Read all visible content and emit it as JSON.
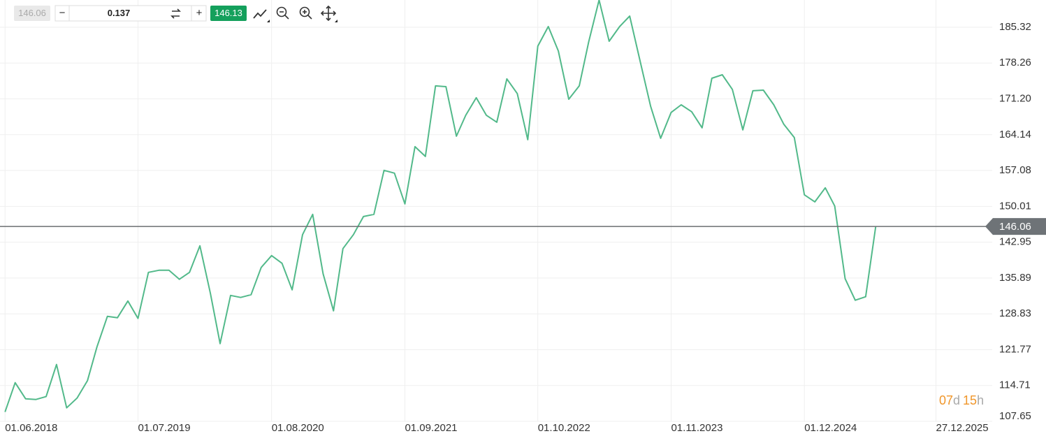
{
  "toolbar": {
    "bid": "146.06",
    "step": "0.137",
    "ask": "146.13"
  },
  "countdown": [
    "07",
    "d",
    "15",
    "h"
  ],
  "chart_data": {
    "type": "line",
    "color": "#52b98a",
    "x": [
      "2018-06-01",
      "2018-07-01",
      "2018-08-01",
      "2018-09-01",
      "2018-10-01",
      "2018-11-01",
      "2018-12-01",
      "2019-01-01",
      "2019-02-01",
      "2019-03-01",
      "2019-04-01",
      "2019-05-01",
      "2019-06-01",
      "2019-07-01",
      "2019-08-01",
      "2019-09-01",
      "2019-10-01",
      "2019-11-01",
      "2019-12-01",
      "2020-01-01",
      "2020-02-01",
      "2020-03-01",
      "2020-04-01",
      "2020-05-01",
      "2020-06-01",
      "2020-07-01",
      "2020-08-01",
      "2020-09-01",
      "2020-10-01",
      "2020-11-01",
      "2020-12-01",
      "2021-01-01",
      "2021-02-01",
      "2021-03-01",
      "2021-04-01",
      "2021-05-01",
      "2021-06-01",
      "2021-07-01",
      "2021-08-01",
      "2021-09-01",
      "2021-10-01",
      "2021-11-01",
      "2021-12-01",
      "2022-01-01",
      "2022-02-01",
      "2022-03-01",
      "2022-04-01",
      "2022-05-01",
      "2022-06-01",
      "2022-07-01",
      "2022-08-01",
      "2022-09-01",
      "2022-10-01",
      "2022-11-01",
      "2022-12-01",
      "2023-01-01",
      "2023-02-01",
      "2023-03-01",
      "2023-04-01",
      "2023-05-01",
      "2023-06-01",
      "2023-07-01",
      "2023-08-01",
      "2023-09-01",
      "2023-10-01",
      "2023-11-01",
      "2023-12-01",
      "2024-01-01",
      "2024-02-01",
      "2024-03-01",
      "2024-04-01",
      "2024-05-01",
      "2024-06-01",
      "2024-07-01",
      "2024-08-01",
      "2024-09-01",
      "2024-10-01",
      "2024-11-01",
      "2024-12-01",
      "2025-01-01",
      "2025-02-01",
      "2025-03-01",
      "2025-04-01",
      "2025-05-01",
      "2025-06-01",
      "2025-07-01"
    ],
    "values": [
      109.49,
      115.27,
      112.1,
      111.96,
      112.52,
      118.85,
      110.31,
      112.24,
      115.68,
      122.29,
      128.34,
      128.07,
      131.37,
      127.93,
      137.01,
      137.43,
      137.43,
      135.64,
      137.01,
      142.24,
      132.88,
      122.97,
      132.47,
      132.06,
      132.61,
      137.98,
      140.32,
      138.8,
      133.57,
      144.45,
      148.44,
      136.74,
      129.44,
      141.69,
      144.45,
      148.02,
      148.44,
      157.11,
      156.56,
      150.5,
      161.79,
      159.86,
      173.76,
      173.62,
      163.85,
      167.98,
      171.42,
      167.98,
      166.6,
      175.14,
      172.25,
      163.16,
      181.6,
      185.46,
      180.64,
      171.14,
      173.76,
      182.43,
      190.69,
      182.57,
      185.46,
      187.52,
      178.58,
      169.77,
      163.44,
      168.53,
      170.04,
      168.67,
      165.5,
      175.27,
      175.96,
      173.07,
      165.09,
      172.8,
      172.93,
      170.04,
      166.19,
      163.57,
      152.29,
      150.91,
      153.67,
      150.09,
      135.77,
      131.51,
      132.2,
      146.06
    ],
    "current_price": 146.06,
    "xlim": [
      "2018-05-17",
      "2026-06-12"
    ],
    "xticks": [
      {
        "value": "2018-06-01",
        "label": "01.06.2018"
      },
      {
        "value": "2019-07-01",
        "label": "01.07.2019"
      },
      {
        "value": "2020-08-01",
        "label": "01.08.2020"
      },
      {
        "value": "2021-09-01",
        "label": "01.09.2021"
      },
      {
        "value": "2022-10-01",
        "label": "01.10.2022"
      },
      {
        "value": "2023-11-01",
        "label": "01.11.2023"
      },
      {
        "value": "2024-12-01",
        "label": "01.12.2024"
      },
      {
        "value": "2025-12-27",
        "label": "27.12.2025"
      }
    ],
    "ylim": [
      107.65,
      190.69
    ],
    "yticks": [
      {
        "value": 185.32,
        "label": "185.32"
      },
      {
        "value": 178.26,
        "label": "178.26"
      },
      {
        "value": 171.2,
        "label": "171.20"
      },
      {
        "value": 164.14,
        "label": "164.14"
      },
      {
        "value": 157.08,
        "label": "157.08"
      },
      {
        "value": 150.01,
        "label": "150.01"
      },
      {
        "value": 142.95,
        "label": "142.95"
      },
      {
        "value": 135.89,
        "label": "135.89"
      },
      {
        "value": 128.83,
        "label": "128.83"
      },
      {
        "value": 121.77,
        "label": "121.77"
      },
      {
        "value": 114.71,
        "label": "114.71"
      },
      {
        "value": 107.65,
        "label": "107.65"
      }
    ],
    "grid": true
  }
}
